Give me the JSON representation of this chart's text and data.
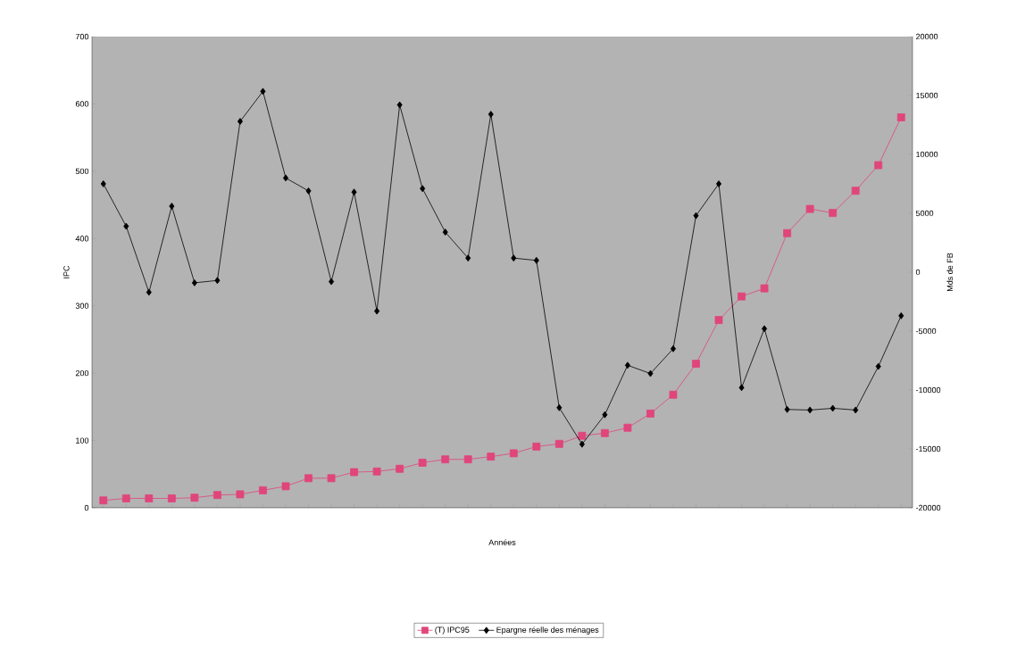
{
  "chart_data": {
    "type": "line",
    "xlabel": "Années",
    "ylabel": "IPC",
    "y2label": "Mds de FB",
    "categories": [
      null,
      null,
      null,
      null,
      null,
      null,
      null,
      null,
      null,
      null,
      null,
      null,
      null,
      null,
      null,
      null,
      null,
      null,
      null,
      null,
      null,
      null,
      null,
      null,
      null,
      null,
      null,
      null,
      null,
      null,
      null,
      null,
      null,
      null,
      null,
      null
    ],
    "series": [
      {
        "name": "(T) IPC95",
        "color": "#e0457b",
        "marker": "square",
        "axis": "y",
        "values": [
          11,
          14,
          14,
          14,
          15,
          19,
          20,
          26,
          32,
          44,
          44,
          53,
          54,
          58,
          67,
          72,
          72,
          76,
          81,
          91,
          95,
          107,
          111,
          119,
          140,
          168,
          214,
          279,
          314,
          326,
          408,
          444,
          438,
          471,
          509,
          580
        ]
      },
      {
        "name": "Epargne réelle des ménages",
        "color": "#000000",
        "marker": "diamond",
        "axis": "y2",
        "values": [
          7500,
          3900,
          -1700,
          5600,
          -900,
          -700,
          12800,
          15350,
          8000,
          6900,
          -800,
          6800,
          -3300,
          14200,
          7100,
          3400,
          1200,
          13400,
          1200,
          1000,
          -11500,
          -14600,
          -12100,
          -7900,
          -8600,
          -6500,
          4800,
          7500,
          -9800,
          -4800,
          -11650,
          -11700,
          -11550,
          -11700,
          -8000,
          -3700
        ]
      }
    ],
    "ylim": [
      0,
      700
    ],
    "yticks": [
      0,
      100,
      200,
      300,
      400,
      500,
      600,
      700
    ],
    "y2lim": [
      -20000,
      20000
    ],
    "y2ticks": [
      -20000,
      -15000,
      -10000,
      -5000,
      0,
      5000,
      10000,
      15000,
      20000
    ],
    "grid": false,
    "legend": "bottom"
  }
}
